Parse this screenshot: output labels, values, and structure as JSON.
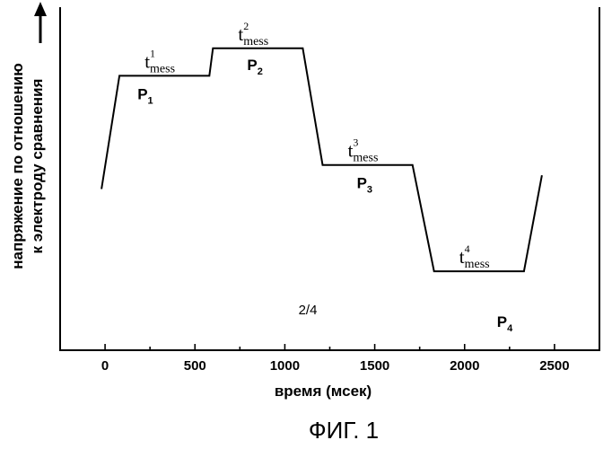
{
  "chart_data": {
    "type": "line",
    "xlabel": "время (мсек)",
    "ylabel_lines": [
      "напряжение по отношению",
      "к электроду сравнения"
    ],
    "xlim": [
      -250,
      2750
    ],
    "xticks": [
      0,
      500,
      1000,
      1500,
      2000,
      2500
    ],
    "xtick_labels": [
      "0",
      "500",
      "1000",
      "1500",
      "2000",
      "2500"
    ],
    "ylim": [
      0,
      100
    ],
    "grid": false,
    "legend": "none",
    "series": [
      {
        "x": [
          -20,
          80,
          580,
          600,
          1100,
          1210,
          1710,
          1830,
          2330,
          2430
        ],
        "y": [
          47,
          80,
          80,
          88,
          88,
          54,
          54,
          23,
          23,
          51
        ]
      }
    ],
    "plateaus": [
      {
        "name": "P",
        "index": "1",
        "t": "t",
        "t_sub": "mess",
        "t_sup": "1",
        "x_mid": 330,
        "y": 80
      },
      {
        "name": "P",
        "index": "2",
        "t": "t",
        "t_sub": "mess",
        "t_sup": "2",
        "x_mid": 850,
        "y": 88
      },
      {
        "name": "P",
        "index": "3",
        "t": "t",
        "t_sub": "mess",
        "t_sup": "3",
        "x_mid": 1460,
        "y": 54
      },
      {
        "name": "P",
        "index": "4",
        "t": "t",
        "t_sub": "mess",
        "t_sup": "4",
        "x_mid": 2080,
        "y": 23
      }
    ],
    "page_label": "2/4"
  },
  "caption": "ФИГ. 1"
}
